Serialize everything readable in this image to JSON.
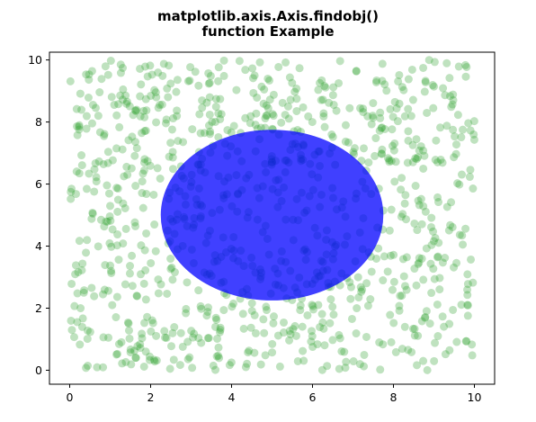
{
  "chart_data": {
    "type": "scatter",
    "title_lines": [
      "matplotlib.axis.Axis.findobj()",
      "function Example"
    ],
    "xlim": [
      -0.5,
      10.5
    ],
    "ylim": [
      -0.45,
      10.25
    ],
    "xticks": [
      0,
      2,
      4,
      6,
      8,
      10
    ],
    "yticks": [
      0,
      2,
      4,
      6,
      8,
      10
    ],
    "grid": false,
    "scatter": {
      "color": "#2ca02c",
      "alpha": 0.3,
      "count": 1000,
      "x_range": [
        0,
        10
      ],
      "y_range": [
        0,
        10
      ],
      "distribution": "uniform random"
    },
    "ellipse": {
      "center": [
        5,
        5
      ],
      "width": 5.5,
      "height": 5.5,
      "color": "#0000ff",
      "alpha": 0.75
    }
  }
}
